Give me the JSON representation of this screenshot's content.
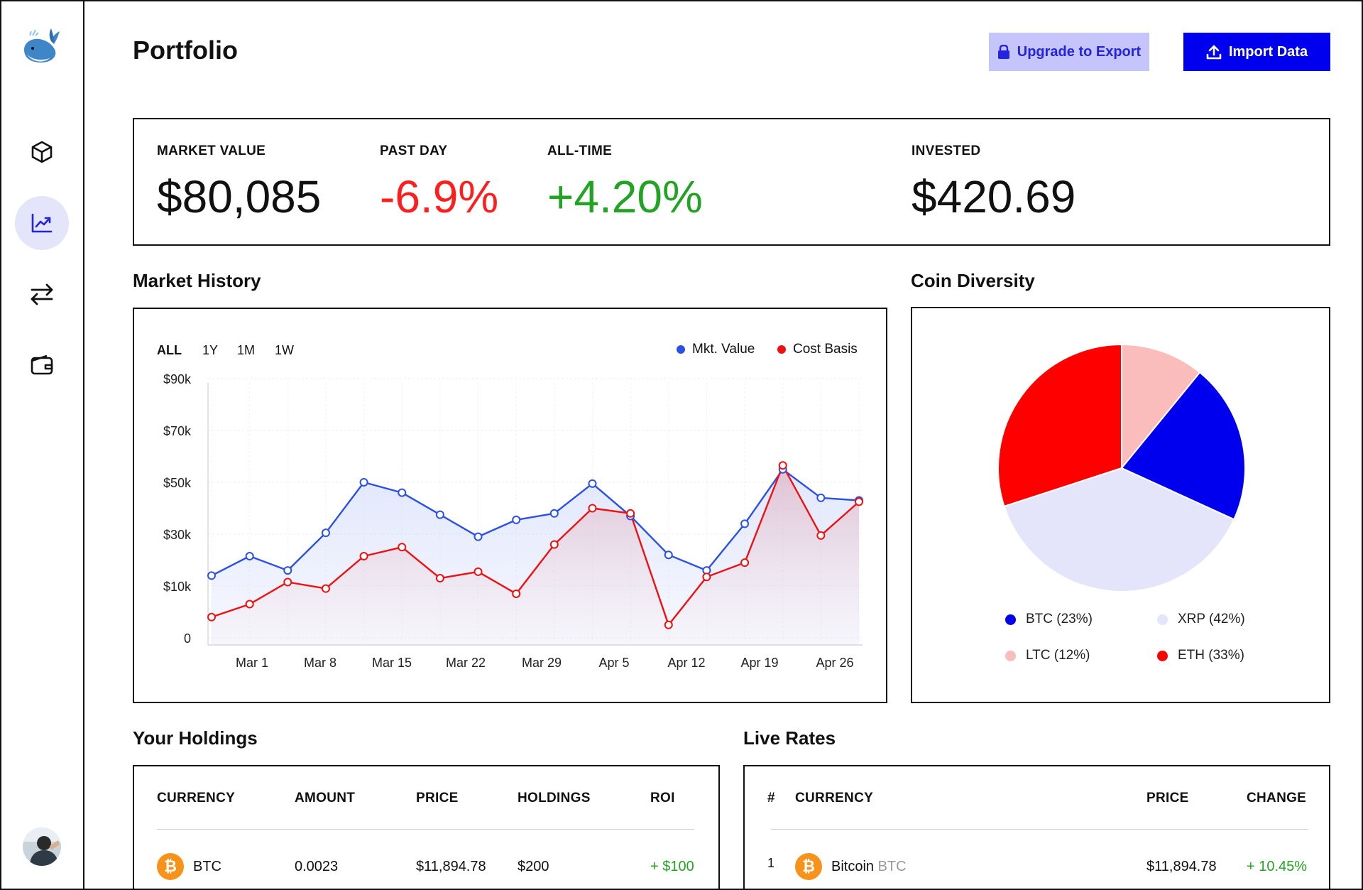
{
  "header": {
    "title": "Portfolio",
    "upgrade_label": "Upgrade to Export",
    "import_label": "Import Data"
  },
  "sidebar": {
    "items": [
      {
        "name": "cube-icon",
        "active": false
      },
      {
        "name": "chart-icon",
        "active": true
      },
      {
        "name": "transfer-icon",
        "active": false
      },
      {
        "name": "wallet-icon",
        "active": false
      }
    ]
  },
  "stats": {
    "market_value": {
      "label": "MARKET VALUE",
      "value": "$80,085"
    },
    "past_day": {
      "label": "PAST DAY",
      "value": "-6.9%"
    },
    "all_time": {
      "label": "ALL-TIME",
      "value": "+4.20%"
    },
    "invested": {
      "label": "INVESTED",
      "value": "$420.69"
    }
  },
  "market_history": {
    "title": "Market History",
    "ranges": [
      "ALL",
      "1Y",
      "1M",
      "1W"
    ],
    "active_range": "ALL",
    "colors": {
      "mkt": "#2b50e6",
      "cost": "#ee1111"
    }
  },
  "coin_diversity": {
    "title": "Coin Diversity",
    "legend": [
      {
        "label": "BTC (23%)",
        "color": "#0000ee"
      },
      {
        "label": "XRP (42%)",
        "color": "#e4e4fb"
      },
      {
        "label": "LTC (12%)",
        "color": "#fbbcbc"
      },
      {
        "label": "ETH (33%)",
        "color": "#ff0000"
      }
    ]
  },
  "holdings": {
    "title": "Your Holdings",
    "headers": [
      "CURRENCY",
      "AMOUNT",
      "PRICE",
      "HOLDINGS",
      "ROI"
    ],
    "rows": [
      {
        "currency": "BTC",
        "amount": "0.0023",
        "price": "$11,894.78",
        "holdings": "$200",
        "roi": "+ $100"
      }
    ]
  },
  "live_rates": {
    "title": "Live Rates",
    "headers": [
      "#",
      "CURRENCY",
      "PRICE",
      "CHANGE"
    ],
    "rows": [
      {
        "rank": "1",
        "name": "Bitcoin",
        "symbol": "BTC",
        "price": "$11,894.78",
        "change": "+ 10.45%"
      }
    ]
  },
  "chart_data": [
    {
      "type": "line",
      "xlabel": "",
      "ylabel": "",
      "y_ticks": [
        "0",
        "$10k",
        "$30k",
        "$50k",
        "$70k",
        "$90k"
      ],
      "x_ticks": [
        "Mar 1",
        "Mar 8",
        "Mar 15",
        "Mar 22",
        "Mar 29",
        "Apr 5",
        "Apr 12",
        "Apr 19",
        "Apr 26"
      ],
      "grid": true,
      "legend_position": "top-right",
      "series": [
        {
          "name": "Mkt. Value",
          "values": [
            14000,
            21500,
            16000,
            30500,
            50000,
            46000,
            37500,
            29000,
            35500,
            38000,
            49500,
            37000,
            22000,
            16000,
            34000,
            55000,
            44000,
            43000
          ]
        },
        {
          "name": "Cost Basis",
          "values": [
            4000,
            6500,
            11500,
            9500,
            21500,
            25000,
            13000,
            15500,
            8500,
            26000,
            40000,
            38000,
            2500,
            13500,
            19000,
            56500,
            29500,
            42500
          ]
        }
      ]
    },
    {
      "type": "pie",
      "categories": [
        "BTC",
        "XRP",
        "LTC",
        "ETH"
      ],
      "values": [
        23,
        42,
        12,
        33
      ]
    }
  ]
}
